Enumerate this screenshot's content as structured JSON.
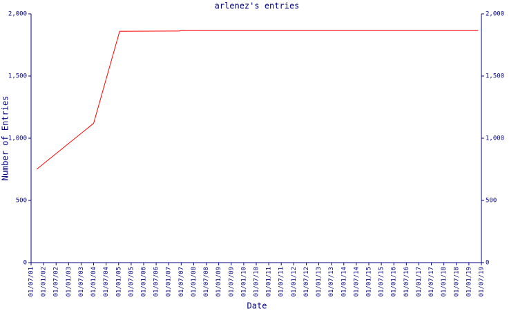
{
  "chart_data": {
    "type": "line",
    "title": "arlenez's entries",
    "x_label": "Date",
    "y_label": "Number of Entries",
    "x": [
      2001.72,
      2004.0,
      2005.04,
      2007.44,
      2007.46,
      2019.37
    ],
    "values": [
      750,
      1120,
      1860,
      1862,
      1865,
      1865
    ],
    "color": "#ff0000",
    "xlim": [
      2001.5,
      2019.5
    ],
    "xticks": [
      {
        "value": 2001.5,
        "label": "01/07/01"
      },
      {
        "value": 2002,
        "label": "01/01/02"
      },
      {
        "value": 2002.5,
        "label": "01/07/02"
      },
      {
        "value": 2003,
        "label": "01/01/03"
      },
      {
        "value": 2003.5,
        "label": "01/07/03"
      },
      {
        "value": 2004,
        "label": "01/01/04"
      },
      {
        "value": 2004.5,
        "label": "01/07/04"
      },
      {
        "value": 2005,
        "label": "01/01/05"
      },
      {
        "value": 2005.5,
        "label": "01/07/05"
      },
      {
        "value": 2006,
        "label": "01/01/06"
      },
      {
        "value": 2006.5,
        "label": "01/07/06"
      },
      {
        "value": 2007,
        "label": "01/01/07"
      },
      {
        "value": 2007.5,
        "label": "01/07/07"
      },
      {
        "value": 2008,
        "label": "01/01/08"
      },
      {
        "value": 2008.5,
        "label": "01/07/08"
      },
      {
        "value": 2009,
        "label": "01/01/09"
      },
      {
        "value": 2009.5,
        "label": "01/07/09"
      },
      {
        "value": 2010,
        "label": "01/01/10"
      },
      {
        "value": 2010.5,
        "label": "01/07/10"
      },
      {
        "value": 2011,
        "label": "01/01/11"
      },
      {
        "value": 2011.5,
        "label": "01/07/11"
      },
      {
        "value": 2012,
        "label": "01/01/12"
      },
      {
        "value": 2012.5,
        "label": "01/07/12"
      },
      {
        "value": 2013,
        "label": "01/01/13"
      },
      {
        "value": 2013.5,
        "label": "01/07/13"
      },
      {
        "value": 2014,
        "label": "01/01/14"
      },
      {
        "value": 2014.5,
        "label": "01/07/14"
      },
      {
        "value": 2015,
        "label": "01/01/15"
      },
      {
        "value": 2015.5,
        "label": "01/07/15"
      },
      {
        "value": 2016,
        "label": "01/01/16"
      },
      {
        "value": 2016.5,
        "label": "01/07/16"
      },
      {
        "value": 2017,
        "label": "01/01/17"
      },
      {
        "value": 2017.5,
        "label": "01/07/17"
      },
      {
        "value": 2018,
        "label": "01/01/18"
      },
      {
        "value": 2018.5,
        "label": "01/07/18"
      },
      {
        "value": 2019,
        "label": "01/01/19"
      },
      {
        "value": 2019.5,
        "label": "01/07/19"
      }
    ],
    "ylim": [
      0,
      2000
    ],
    "yticks": [
      0,
      500,
      {
        "value": 1000,
        "label": "1,000"
      },
      {
        "value": 1500,
        "label": "1,500"
      },
      {
        "value": 2000,
        "label": "2,000"
      }
    ],
    "y2lim": [
      0,
      2000
    ],
    "y2ticks": [
      0,
      500,
      {
        "value": 1000,
        "label": "1,000"
      },
      {
        "value": 1500,
        "label": "1,500"
      },
      {
        "value": 2000,
        "label": "2,000"
      }
    ],
    "grid": false
  }
}
